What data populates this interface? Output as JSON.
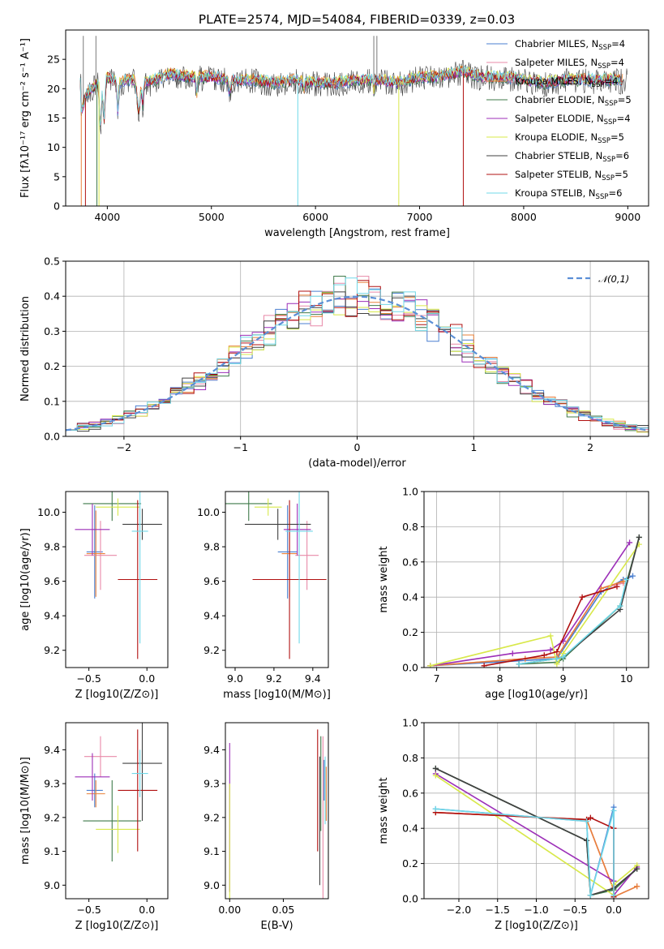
{
  "figure_title": "PLATE=2574, MJD=54084, FIBERID=0339, z=0.03",
  "colors": [
    "#4a7fd0",
    "#e889a8",
    "#e8803a",
    "#3f7a4a",
    "#9c2fb8",
    "#d8e84a",
    "#404040",
    "#b01010",
    "#70d8e8"
  ],
  "chart_data": [
    {
      "id": "spectrum",
      "type": "line",
      "xlabel": "wavelength [Angstrom, rest frame]",
      "ylabel": "Flux [fλ10⁻¹⁷ erg cm⁻² s⁻¹ A⁻¹]",
      "xlim": [
        3600,
        9200
      ],
      "ylim": [
        0,
        30
      ],
      "xticks": [
        4000,
        5000,
        6000,
        7000,
        8000,
        9000
      ],
      "yticks": [
        0,
        5,
        10,
        15,
        20,
        25
      ],
      "grid": false,
      "legend": "top-right",
      "series": [
        {
          "name": "Chabrier MILES, N_SSP=4"
        },
        {
          "name": "Salpeter MILES, N_SSP=4"
        },
        {
          "name": "Kroupa MILES, N_SSP=4"
        },
        {
          "name": "Chabrier ELODIE, N_SSP=5"
        },
        {
          "name": "Salpeter ELODIE, N_SSP=4"
        },
        {
          "name": "Kroupa ELODIE, N_SSP=5"
        },
        {
          "name": "Chabrier STELIB, N_SSP=6"
        },
        {
          "name": "Salpeter STELIB, N_SSP=5"
        },
        {
          "name": "Kroupa STELIB, N_SSP=6"
        }
      ],
      "continuum": [
        [
          3750,
          16
        ],
        [
          3800,
          19
        ],
        [
          3900,
          21
        ],
        [
          4000,
          22
        ],
        [
          4100,
          21
        ],
        [
          4200,
          21.5
        ],
        [
          4400,
          21
        ],
        [
          4600,
          22.5
        ],
        [
          4800,
          22
        ],
        [
          5000,
          22
        ],
        [
          5200,
          21.5
        ],
        [
          5400,
          21.5
        ],
        [
          5600,
          21
        ],
        [
          5800,
          21.5
        ],
        [
          6000,
          21
        ],
        [
          6200,
          21
        ],
        [
          6400,
          21.5
        ],
        [
          6600,
          21.5
        ],
        [
          6800,
          21
        ],
        [
          7000,
          22
        ],
        [
          7200,
          22
        ],
        [
          7400,
          23
        ],
        [
          7600,
          22
        ],
        [
          7800,
          22
        ],
        [
          8000,
          21.5
        ],
        [
          8200,
          21
        ],
        [
          8400,
          21.5
        ],
        [
          8600,
          21.5
        ],
        [
          8800,
          21.5
        ],
        [
          9000,
          21.5
        ]
      ]
    },
    {
      "id": "residuals",
      "type": "histogram",
      "xlabel": "(data-model)/error",
      "ylabel": "Normed distribution",
      "xlim": [
        -2.5,
        2.5
      ],
      "ylim": [
        0,
        0.5
      ],
      "xticks": [
        -2,
        -1,
        0,
        1,
        2
      ],
      "yticks": [
        0,
        0.1,
        0.2,
        0.3,
        0.4,
        0.5
      ],
      "bin_width": 0.1,
      "grid": true,
      "legend": "top-right",
      "reference": {
        "name": "𝒩(0,1)",
        "mean": 0,
        "sigma": 1
      }
    },
    {
      "id": "age-vs-Z",
      "type": "errorbar",
      "xlabel": "Z [log10(Z/Z⊙)]",
      "ylabel": "age  [log10(age/yr)]",
      "xlim": [
        -0.7,
        0.18
      ],
      "ylim": [
        9.1,
        10.12
      ],
      "xticks": [
        -0.5,
        0.0
      ],
      "yticks": [
        9.2,
        9.4,
        9.6,
        9.8,
        10.0
      ],
      "grid": false,
      "points": [
        {
          "x": -0.45,
          "xerr": 0.07,
          "y": 9.77,
          "yerr": 0.27,
          "c": 0
        },
        {
          "x": -0.4,
          "xerr": 0.14,
          "y": 9.75,
          "yerr": 0.2,
          "c": 1
        },
        {
          "x": -0.44,
          "xerr": 0.08,
          "y": 9.76,
          "yerr": 0.25,
          "c": 2
        },
        {
          "x": -0.3,
          "xerr": 0.25,
          "y": 10.05,
          "yerr": 0.1,
          "c": 3
        },
        {
          "x": -0.47,
          "xerr": 0.15,
          "y": 9.9,
          "yerr": 0.15,
          "c": 4
        },
        {
          "x": -0.25,
          "xerr": 0.19,
          "y": 10.03,
          "yerr": 0.05,
          "c": 5
        },
        {
          "x": -0.04,
          "xerr": 0.17,
          "y": 9.93,
          "yerr": 0.09,
          "c": 6
        },
        {
          "x": -0.08,
          "xerr": 0.17,
          "y": 9.61,
          "yerr": 0.46,
          "c": 7
        },
        {
          "x": -0.06,
          "xerr": 0.07,
          "y": 9.89,
          "yerr": 0.65,
          "c": 8
        }
      ]
    },
    {
      "id": "age-vs-mass",
      "type": "errorbar",
      "xlabel": "mass [log10(M/M⊙)]",
      "ylabel": "",
      "xlim": [
        8.95,
        9.48
      ],
      "ylim": [
        9.1,
        10.12
      ],
      "xticks": [
        9.0,
        9.2,
        9.4
      ],
      "yticks": [
        9.2,
        9.4,
        9.6,
        9.8,
        10.0
      ],
      "grid": false,
      "points": [
        {
          "x": 9.27,
          "xerr": 0.05,
          "y": 9.77,
          "yerr": 0.27,
          "c": 0
        },
        {
          "x": 9.37,
          "xerr": 0.06,
          "y": 9.75,
          "yerr": 0.2,
          "c": 1
        },
        {
          "x": 9.28,
          "xerr": 0.04,
          "y": 9.76,
          "yerr": 0.25,
          "c": 2
        },
        {
          "x": 9.07,
          "xerr": 0.12,
          "y": 10.05,
          "yerr": 0.1,
          "c": 3
        },
        {
          "x": 9.32,
          "xerr": 0.07,
          "y": 9.9,
          "yerr": 0.15,
          "c": 4
        },
        {
          "x": 9.17,
          "xerr": 0.07,
          "y": 10.03,
          "yerr": 0.05,
          "c": 5
        },
        {
          "x": 9.22,
          "xerr": 0.17,
          "y": 9.93,
          "yerr": 0.09,
          "c": 6
        },
        {
          "x": 9.28,
          "xerr": 0.19,
          "y": 9.61,
          "yerr": 0.46,
          "c": 7
        },
        {
          "x": 9.33,
          "xerr": 0.07,
          "y": 9.89,
          "yerr": 0.65,
          "c": 8
        }
      ]
    },
    {
      "id": "weight-vs-age",
      "type": "line",
      "xlabel": "age  [log10(age/yr)]",
      "ylabel": "mass weight",
      "xlim": [
        6.8,
        10.35
      ],
      "ylim": [
        0,
        1.0
      ],
      "xticks": [
        7,
        8,
        9,
        10
      ],
      "yticks": [
        0.0,
        0.2,
        0.4,
        0.6,
        0.8,
        1.0
      ],
      "grid": true,
      "series": [
        {
          "c": 0,
          "x": [
            6.9,
            8.9,
            9.6,
            9.95,
            10.1
          ],
          "y": [
            0.01,
            0.05,
            0.43,
            0.5,
            0.52
          ]
        },
        {
          "c": 1,
          "x": [
            6.9,
            8.4,
            8.9,
            9.6,
            9.95
          ],
          "y": [
            0.01,
            0.05,
            0.06,
            0.45,
            0.48
          ]
        },
        {
          "c": 2,
          "x": [
            6.9,
            8.4,
            8.9,
            9.6,
            9.95
          ],
          "y": [
            0.01,
            0.05,
            0.06,
            0.45,
            0.49
          ]
        },
        {
          "c": 3,
          "x": [
            8.3,
            8.9,
            9.0,
            9.9,
            10.2
          ],
          "y": [
            0.02,
            0.03,
            0.05,
            0.35,
            0.74
          ]
        },
        {
          "c": 4,
          "x": [
            6.9,
            8.2,
            8.8,
            9.0,
            10.05
          ],
          "y": [
            0.01,
            0.08,
            0.1,
            0.15,
            0.71
          ]
        },
        {
          "c": 5,
          "x": [
            6.9,
            8.8,
            8.9,
            9.0,
            10.2
          ],
          "y": [
            0.01,
            0.18,
            0.02,
            0.08,
            0.7
          ]
        },
        {
          "c": 6,
          "x": [
            8.3,
            8.9,
            9.0,
            9.9,
            10.2
          ],
          "y": [
            0.02,
            0.05,
            0.06,
            0.33,
            0.74
          ]
        },
        {
          "c": 7,
          "x": [
            7.75,
            8.7,
            8.9,
            9.3,
            9.85
          ],
          "y": [
            0.01,
            0.07,
            0.09,
            0.4,
            0.46
          ]
        },
        {
          "c": 8,
          "x": [
            8.3,
            8.9,
            9.0,
            9.9,
            10.0
          ],
          "y": [
            0.02,
            0.05,
            0.06,
            0.35,
            0.5
          ]
        }
      ]
    },
    {
      "id": "mass-vs-Z",
      "type": "errorbar",
      "xlabel": "Z [log10(Z/Z⊙)]",
      "ylabel": "mass [log10(M/M⊙)]",
      "xlim": [
        -0.7,
        0.18
      ],
      "ylim": [
        8.96,
        9.48
      ],
      "xticks": [
        -0.5,
        0.0
      ],
      "yticks": [
        9.0,
        9.1,
        9.2,
        9.3,
        9.4
      ],
      "grid": false,
      "points": [
        {
          "x": -0.45,
          "xerr": 0.07,
          "y": 9.28,
          "yerr": 0.05,
          "c": 0
        },
        {
          "x": -0.4,
          "xerr": 0.14,
          "y": 9.38,
          "yerr": 0.06,
          "c": 1
        },
        {
          "x": -0.44,
          "xerr": 0.08,
          "y": 9.27,
          "yerr": 0.04,
          "c": 2
        },
        {
          "x": -0.3,
          "xerr": 0.25,
          "y": 9.19,
          "yerr": 0.12,
          "c": 3
        },
        {
          "x": -0.47,
          "xerr": 0.15,
          "y": 9.32,
          "yerr": 0.07,
          "c": 4
        },
        {
          "x": -0.25,
          "xerr": 0.19,
          "y": 9.165,
          "yerr": 0.07,
          "c": 5
        },
        {
          "x": -0.04,
          "xerr": 0.17,
          "y": 9.36,
          "yerr": 0.17,
          "c": 6
        },
        {
          "x": -0.08,
          "xerr": 0.17,
          "y": 9.28,
          "yerr": 0.18,
          "c": 7
        },
        {
          "x": -0.06,
          "xerr": 0.07,
          "y": 9.33,
          "yerr": 0.07,
          "c": 8
        }
      ]
    },
    {
      "id": "mass-vs-ebv",
      "type": "errorbar",
      "xlabel": "E(B-V)",
      "ylabel": "",
      "xlim": [
        -0.004,
        0.092
      ],
      "ylim": [
        8.96,
        9.48
      ],
      "xticks": [
        0.0,
        0.05
      ],
      "yticks": [
        9.0,
        9.1,
        9.2,
        9.3,
        9.4
      ],
      "grid": false,
      "points": [
        {
          "x": 0.0,
          "xerr": 0.0,
          "y": 9.2,
          "yerr": 0.22,
          "c": 4
        },
        {
          "x": 0.0,
          "xerr": 0.0,
          "y": 9.13,
          "yerr": 0.17,
          "c": 5
        },
        {
          "x": 0.082,
          "xerr": 0.0,
          "y": 9.28,
          "yerr": 0.18,
          "c": 7
        },
        {
          "x": 0.084,
          "xerr": 0.0,
          "y": 9.19,
          "yerr": 0.19,
          "c": 6
        },
        {
          "x": 0.085,
          "xerr": 0.0,
          "y": 9.3,
          "yerr": 0.14,
          "c": 3
        },
        {
          "x": 0.087,
          "xerr": 0.0,
          "y": 9.2,
          "yerr": 0.24,
          "c": 1
        },
        {
          "x": 0.088,
          "xerr": 0.0,
          "y": 9.31,
          "yerr": 0.06,
          "c": 0
        },
        {
          "x": 0.089,
          "xerr": 0.0,
          "y": 9.28,
          "yerr": 0.1,
          "c": 8
        },
        {
          "x": 0.09,
          "xerr": 0.0,
          "y": 9.27,
          "yerr": 0.08,
          "c": 2
        }
      ]
    },
    {
      "id": "weight-vs-Z",
      "type": "line",
      "xlabel": "Z [log10(Z/Z⊙)]",
      "ylabel": "mass weight",
      "xlim": [
        -2.45,
        0.45
      ],
      "ylim": [
        0,
        1.0
      ],
      "xticks": [
        -2.0,
        -1.5,
        -1.0,
        -0.5,
        0.0
      ],
      "yticks": [
        0.0,
        0.2,
        0.4,
        0.6,
        0.8,
        1.0
      ],
      "grid": true,
      "series": [
        {
          "c": 0,
          "x": [
            -2.3,
            -0.35,
            -0.3,
            0.0,
            0.0
          ],
          "y": [
            0.51,
            0.44,
            0.02,
            0.52,
            0.02
          ]
        },
        {
          "c": 1,
          "x": [
            -2.3,
            -0.35,
            0.0,
            0.0,
            0.3
          ],
          "y": [
            0.49,
            0.45,
            0.05,
            0.01,
            0.07
          ]
        },
        {
          "c": 2,
          "x": [
            -2.3,
            -0.35,
            0.0,
            0.0,
            0.3
          ],
          "y": [
            0.49,
            0.45,
            0.05,
            0.01,
            0.07
          ]
        },
        {
          "c": 3,
          "x": [
            -2.3,
            -0.35,
            -0.3,
            0.0,
            0.3
          ],
          "y": [
            0.74,
            0.33,
            0.02,
            0.05,
            0.17
          ]
        },
        {
          "c": 4,
          "x": [
            -2.3,
            0.0,
            0.0,
            0.3
          ],
          "y": [
            0.71,
            0.1,
            0.02,
            0.18
          ]
        },
        {
          "c": 5,
          "x": [
            -2.3,
            0.0,
            0.0,
            0.3
          ],
          "y": [
            0.7,
            0.02,
            0.08,
            0.19
          ]
        },
        {
          "c": 6,
          "x": [
            -2.3,
            -0.35,
            -0.3,
            0.0,
            0.3
          ],
          "y": [
            0.74,
            0.33,
            0.02,
            0.06,
            0.17
          ]
        },
        {
          "c": 7,
          "x": [
            -2.3,
            -0.35,
            -0.3,
            0.0,
            0.0
          ],
          "y": [
            0.49,
            0.45,
            0.46,
            0.4,
            0.01
          ]
        },
        {
          "c": 8,
          "x": [
            -2.3,
            -0.35,
            -0.3,
            0.0,
            0.0
          ],
          "y": [
            0.51,
            0.44,
            0.02,
            0.5,
            0.02
          ]
        }
      ]
    }
  ]
}
